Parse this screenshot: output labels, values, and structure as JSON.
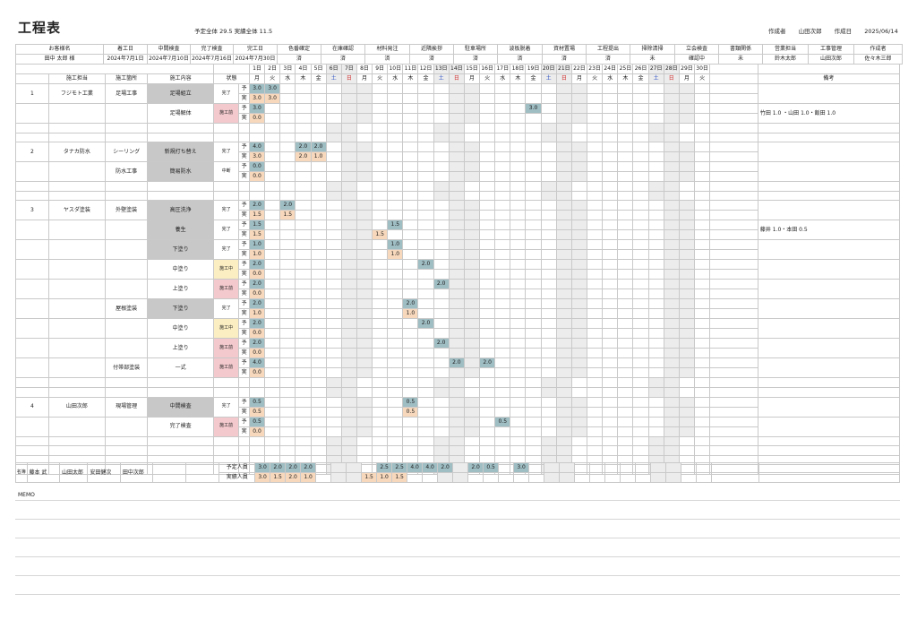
{
  "title": "工程表",
  "totals": {
    "text": "予定全体 29.5 実績全体 11.5"
  },
  "creator": {
    "label": "作成者",
    "name": "山田次郎",
    "date_label": "作成日",
    "date": "2025/06/14"
  },
  "header": {
    "client_label": "お客様名",
    "client": "田中 太郎 様",
    "start_label": "着工日",
    "start": "2024年7月1日",
    "mid_label": "中間検査",
    "mid": "2024年7月10日",
    "done_label": "完了検査",
    "done": "2024年7月16日",
    "end_label": "完工日",
    "end": "2024年7月30日",
    "checks": [
      {
        "label": "色番確定",
        "value": "済"
      },
      {
        "label": "在庫確認",
        "value": "済"
      },
      {
        "label": "材料発注",
        "value": "済"
      },
      {
        "label": "近隣挨拶",
        "value": "済"
      },
      {
        "label": "駐車場所",
        "value": "済"
      },
      {
        "label": "波板脱着",
        "value": "済"
      },
      {
        "label": "資材置場",
        "value": "済"
      },
      {
        "label": "工程提出",
        "value": "済"
      },
      {
        "label": "掃除清掃",
        "value": "未"
      },
      {
        "label": "立会検査",
        "value": "確認中"
      },
      {
        "label": "書類関係",
        "value": "未"
      }
    ],
    "sales_label": "営業担当",
    "sales": "鈴木太郎",
    "pm_label": "工事管理",
    "pm": "山田次郎",
    "author_label": "作成者",
    "author": "佐々木三郎"
  },
  "cols": {
    "person": "施工担当",
    "place": "施工箇所",
    "content": "施工内容",
    "status": "状態",
    "notes": "備考"
  },
  "days": [
    "1日",
    "2日",
    "3日",
    "4日",
    "5日",
    "6日",
    "7日",
    "8日",
    "9日",
    "10日",
    "11日",
    "12日",
    "13日",
    "14日",
    "15日",
    "16日",
    "17日",
    "18日",
    "19日",
    "20日",
    "21日",
    "22日",
    "23日",
    "24日",
    "25日",
    "26日",
    "27日",
    "28日",
    "29日",
    "30日"
  ],
  "weekdays": [
    "月",
    "火",
    "水",
    "木",
    "金",
    "土",
    "日",
    "月",
    "火",
    "水",
    "木",
    "金",
    "土",
    "日",
    "月",
    "火",
    "水",
    "木",
    "金",
    "土",
    "日",
    "月",
    "火",
    "水",
    "木",
    "金",
    "土",
    "日",
    "月",
    "火"
  ],
  "rows": [
    {
      "no": "1",
      "person": "フジモト工業",
      "place": "足場工事",
      "task": "足場組立",
      "gray": true,
      "status": "完了",
      "st": "wh",
      "plan": "3.0",
      "act": "3.0",
      "pd": {
        "1": "3.0"
      },
      "ad": {
        "1": "3.0"
      },
      "note": ""
    },
    {
      "no": "",
      "person": "",
      "place": "",
      "task": "足場解体",
      "gray": false,
      "status": "施工前",
      "st": "pk",
      "plan": "3.0",
      "act": "0.0",
      "pd": {
        "18": "3.0"
      },
      "ad": {},
      "note": "竹田 1.0 ・山田 1.0・飯田 1.0"
    },
    {
      "blank": true
    },
    {
      "no": "2",
      "person": "タナカ防水",
      "place": "シーリング",
      "task": "新規打ち替え",
      "gray": true,
      "status": "完了",
      "st": "wh",
      "plan": "4.0",
      "act": "3.0",
      "pd": {
        "3": "2.0",
        "4": "2.0"
      },
      "ad": {
        "3": "2.0",
        "4": "1.0"
      },
      "note": ""
    },
    {
      "no": "",
      "person": "",
      "place": "防水工事",
      "task": "簡易防水",
      "gray": true,
      "status": "中断",
      "st": "wh",
      "plan": "0.0",
      "act": "0.0",
      "pd": {},
      "ad": {},
      "note": ""
    },
    {
      "blank": true
    },
    {
      "no": "3",
      "person": "ヤスダ塗装",
      "place": "外壁塗装",
      "task": "高圧洗浄",
      "gray": true,
      "status": "完了",
      "st": "wh",
      "plan": "2.0",
      "act": "1.5",
      "pd": {
        "2": "2.0"
      },
      "ad": {
        "2": "1.5"
      },
      "note": ""
    },
    {
      "no": "",
      "person": "",
      "place": "",
      "task": "養生",
      "gray": true,
      "status": "完了",
      "st": "wh",
      "plan": "1.5",
      "act": "1.5",
      "pd": {
        "9": "1.5"
      },
      "ad": {
        "8": "1.5"
      },
      "note": "藤井 1.0・本田 0.5"
    },
    {
      "no": "",
      "person": "",
      "place": "",
      "task": "下塗り",
      "gray": true,
      "status": "完了",
      "st": "wh",
      "plan": "1.0",
      "act": "1.0",
      "pd": {
        "9": "1.0"
      },
      "ad": {
        "9": "1.0"
      },
      "note": ""
    },
    {
      "no": "",
      "person": "",
      "place": "",
      "task": "中塗り",
      "gray": false,
      "status": "施工中",
      "st": "yl",
      "plan": "2.0",
      "act": "0.0",
      "pd": {
        "11": "2.0"
      },
      "ad": {},
      "note": ""
    },
    {
      "no": "",
      "person": "",
      "place": "",
      "task": "上塗り",
      "gray": false,
      "status": "施工前",
      "st": "pk",
      "plan": "2.0",
      "act": "0.0",
      "pd": {
        "12": "2.0"
      },
      "ad": {},
      "note": ""
    },
    {
      "no": "",
      "person": "",
      "place": "屋根塗装",
      "task": "下塗り",
      "gray": true,
      "status": "完了",
      "st": "wh",
      "plan": "2.0",
      "act": "1.0",
      "pd": {
        "10": "2.0"
      },
      "ad": {
        "10": "1.0"
      },
      "note": ""
    },
    {
      "no": "",
      "person": "",
      "place": "",
      "task": "中塗り",
      "gray": false,
      "status": "施工中",
      "st": "yl",
      "plan": "2.0",
      "act": "0.0",
      "pd": {
        "11": "2.0"
      },
      "ad": {},
      "note": ""
    },
    {
      "no": "",
      "person": "",
      "place": "",
      "task": "上塗り",
      "gray": false,
      "status": "施工前",
      "st": "pk",
      "plan": "2.0",
      "act": "0.0",
      "pd": {
        "12": "2.0"
      },
      "ad": {},
      "note": ""
    },
    {
      "no": "",
      "person": "",
      "place": "付帯部塗装",
      "task": "一式",
      "gray": false,
      "status": "施工前",
      "st": "pk",
      "plan": "4.0",
      "act": "0.0",
      "pd": {
        "13": "2.0",
        "15": "2.0"
      },
      "ad": {},
      "note": ""
    },
    {
      "blank": true
    },
    {
      "no": "4",
      "person": "山田次郎",
      "place": "現場管理",
      "task": "中間検査",
      "gray": true,
      "status": "完了",
      "st": "wh",
      "plan": "0.5",
      "act": "0.5",
      "pd": {
        "10": "0.5"
      },
      "ad": {
        "10": "0.5"
      },
      "note": ""
    },
    {
      "no": "",
      "person": "",
      "place": "",
      "task": "完了検査",
      "gray": false,
      "status": "施工前",
      "st": "pk",
      "plan": "0.5",
      "act": "0.0",
      "pd": {
        "16": "0.5"
      },
      "ad": {},
      "note": ""
    },
    {
      "blank": true
    },
    {
      "blank": true
    }
  ],
  "footer": {
    "roster_label": "名簿",
    "names": [
      "藤本 武",
      "山田太郎",
      "安田健次",
      "田中次郎",
      "",
      "",
      ""
    ],
    "plan_label": "予定人員",
    "act_label": "実績人員",
    "plan": {
      "1": "3.0",
      "2": "2.0",
      "3": "2.0",
      "4": "2.0",
      "9": "2.5",
      "10": "2.5",
      "11": "4.0",
      "12": "4.0",
      "13": "2.0",
      "15": "2.0",
      "16": "0.5",
      "18": "3.0"
    },
    "act": {
      "1": "3.0",
      "2": "1.5",
      "3": "2.0",
      "4": "1.0",
      "8": "1.5",
      "9": "1.0",
      "10": "1.5"
    }
  },
  "memo": {
    "label": "MEMO"
  },
  "legend": {
    "plan_mark": "予",
    "act_mark": "実"
  }
}
